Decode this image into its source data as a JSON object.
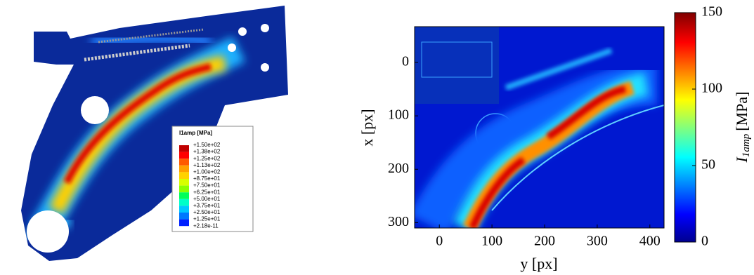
{
  "chart_data": [
    {
      "type": "contour",
      "legend_title": "I1amp [MPa]",
      "levels": [
        {
          "value": 150,
          "label": "+1.50e+02"
        },
        {
          "value": 138,
          "label": "+1.38e+02"
        },
        {
          "value": 125,
          "label": "+1.25e+02"
        },
        {
          "value": 113,
          "label": "+1.13e+02"
        },
        {
          "value": 100,
          "label": "+1.00e+02"
        },
        {
          "value": 87.5,
          "label": "+8.75e+01"
        },
        {
          "value": 75,
          "label": "+7.50e+01"
        },
        {
          "value": 62.5,
          "label": "+6.25e+01"
        },
        {
          "value": 50,
          "label": "+5.00e+01"
        },
        {
          "value": 37.5,
          "label": "+3.75e+01"
        },
        {
          "value": 25,
          "label": "+2.50e+01"
        },
        {
          "value": 12.5,
          "label": "+1.25e+01"
        },
        {
          "value": 2.18e-11,
          "label": "+2.18e-11"
        }
      ],
      "colors": [
        "#c00000",
        "#ff0000",
        "#ff5a00",
        "#ffa000",
        "#ffd200",
        "#d8ff00",
        "#8cff00",
        "#00ff5a",
        "#00ffc8",
        "#00c8ff",
        "#0078ff",
        "#0020ff"
      ]
    },
    {
      "type": "heatmap",
      "xlabel": "y [px]",
      "ylabel": "x [px]",
      "xlim": [
        -47,
        427
      ],
      "xticks": [
        0,
        100,
        200,
        300,
        400
      ],
      "ylim": [
        310,
        -67
      ],
      "yticks": [
        0,
        100,
        200,
        300
      ],
      "colorbar": {
        "lim": [
          0,
          150
        ],
        "ticks": [
          0,
          50,
          100,
          150
        ],
        "symbol": "I",
        "subscript": "1amp",
        "unit": "[MPa]"
      }
    }
  ]
}
